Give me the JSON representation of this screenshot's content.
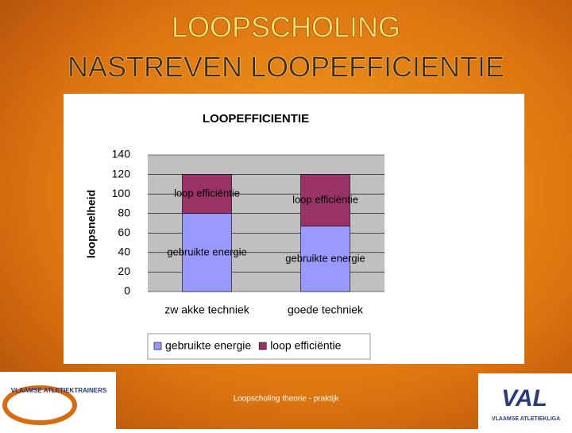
{
  "slide": {
    "title_line1": "LOOPSCHOLING",
    "title_line2": "NASTREVEN LOOPEFFICIENTIE",
    "footer": "Loopscholing theorie - praktijk",
    "logo_left": "VLAAMSE ATLETIEKTRAINERS",
    "logo_right_big": "VAL",
    "logo_right_small": "VLAAMSE ATLETIEKLIGA"
  },
  "chart_data": {
    "type": "stacked_bar",
    "title": "LOOPEFFICIENTIE",
    "y_label": "loopsnelheid",
    "categories": [
      "zw akke techniek",
      "goede techniek"
    ],
    "series": [
      {
        "name": "gebruikte energie",
        "color": "#9999ff",
        "values": [
          80,
          67
        ]
      },
      {
        "name": "loop efficiëntie",
        "color": "#993366",
        "values": [
          40,
          53
        ]
      }
    ],
    "ylim": [
      0,
      140
    ],
    "yticks": [
      0,
      20,
      40,
      60,
      80,
      100,
      120,
      140
    ],
    "grid": true,
    "legend": "bottom"
  }
}
